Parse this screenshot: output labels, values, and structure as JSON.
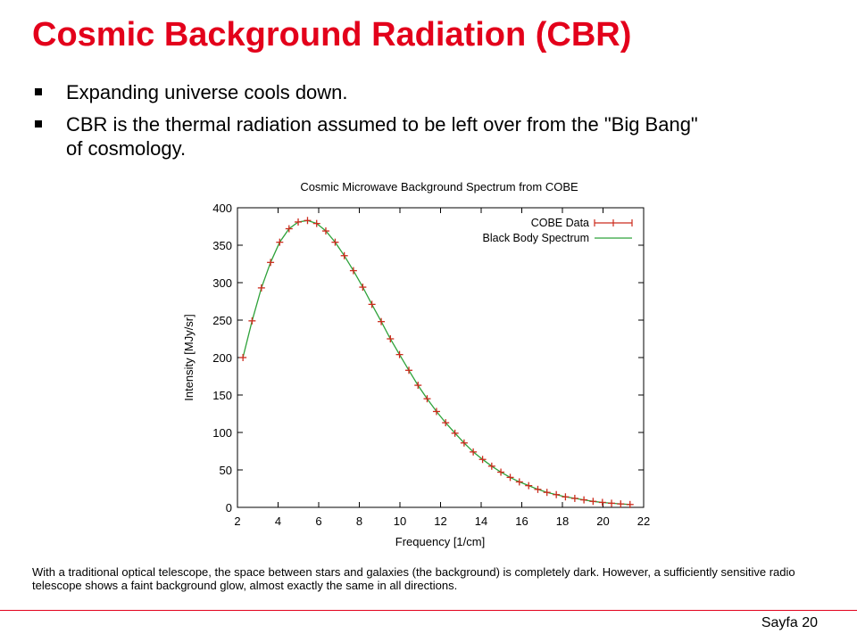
{
  "slide": {
    "title": "Cosmic Background Radiation (CBR)",
    "title_color": "#e3001b",
    "bullets": [
      "Expanding universe cools down.",
      "CBR is the thermal radiation assumed to be left over from the \"Big Bang\" of cosmology."
    ],
    "caption": "With a traditional optical telescope, the space between stars and galaxies (the background) is completely dark. However, a sufficiently sensitive radio telescope shows a faint background glow, almost exactly the same in all directions.",
    "page_number": "Sayfa 20"
  },
  "chart_data": {
    "type": "line",
    "title": "Cosmic Microwave Background Spectrum from COBE",
    "xlabel": "Frequency [1/cm]",
    "ylabel": "Intensity [MJy/sr]",
    "xlim": [
      2,
      22
    ],
    "ylim": [
      0,
      400
    ],
    "xticks": [
      2,
      4,
      6,
      8,
      10,
      12,
      14,
      16,
      18,
      20,
      22
    ],
    "yticks": [
      0,
      50,
      100,
      150,
      200,
      250,
      300,
      350,
      400
    ],
    "grid": false,
    "legend": "top-right",
    "series": [
      {
        "name": "COBE Data",
        "style": "points",
        "color": "#cc2b1d",
        "x": [
          2.27,
          2.72,
          3.18,
          3.63,
          4.08,
          4.54,
          4.99,
          5.45,
          5.9,
          6.35,
          6.81,
          7.26,
          7.71,
          8.17,
          8.62,
          9.08,
          9.53,
          9.98,
          10.44,
          10.89,
          11.34,
          11.8,
          12.25,
          12.71,
          13.16,
          13.61,
          14.07,
          14.52,
          14.97,
          15.43,
          15.88,
          16.34,
          16.79,
          17.24,
          17.7,
          18.15,
          18.61,
          19.06,
          19.51,
          19.97,
          20.42,
          20.87,
          21.33
        ],
        "y": [
          200,
          249,
          293,
          327,
          354,
          372,
          381,
          383,
          379,
          369,
          354,
          336,
          316,
          294,
          271,
          248,
          225,
          204,
          183,
          163,
          145,
          128,
          113,
          99,
          86,
          74,
          64,
          55,
          47,
          40,
          34,
          29,
          24,
          20,
          17,
          14,
          12,
          10,
          8,
          6.6,
          5.5,
          4.6,
          3.8
        ]
      },
      {
        "name": "Black Body Spectrum",
        "style": "line",
        "color": "#2ea23a",
        "x": [
          2.27,
          2.72,
          3.18,
          3.63,
          4.08,
          4.54,
          4.99,
          5.45,
          5.9,
          6.35,
          6.81,
          7.26,
          7.71,
          8.17,
          8.62,
          9.08,
          9.53,
          9.98,
          10.44,
          10.89,
          11.34,
          11.8,
          12.25,
          12.71,
          13.16,
          13.61,
          14.07,
          14.52,
          14.97,
          15.43,
          15.88,
          16.34,
          16.79,
          17.24,
          17.7,
          18.15,
          18.61,
          19.06,
          19.51,
          19.97,
          20.42,
          20.87,
          21.33
        ],
        "y": [
          200,
          249,
          293,
          327,
          354,
          372,
          381,
          383,
          379,
          369,
          354,
          336,
          316,
          294,
          271,
          248,
          225,
          204,
          183,
          163,
          145,
          128,
          113,
          99,
          86,
          74,
          64,
          55,
          47,
          40,
          34,
          29,
          24,
          20,
          17,
          14,
          12,
          10,
          8,
          6.6,
          5.5,
          4.6,
          3.8
        ]
      }
    ]
  }
}
